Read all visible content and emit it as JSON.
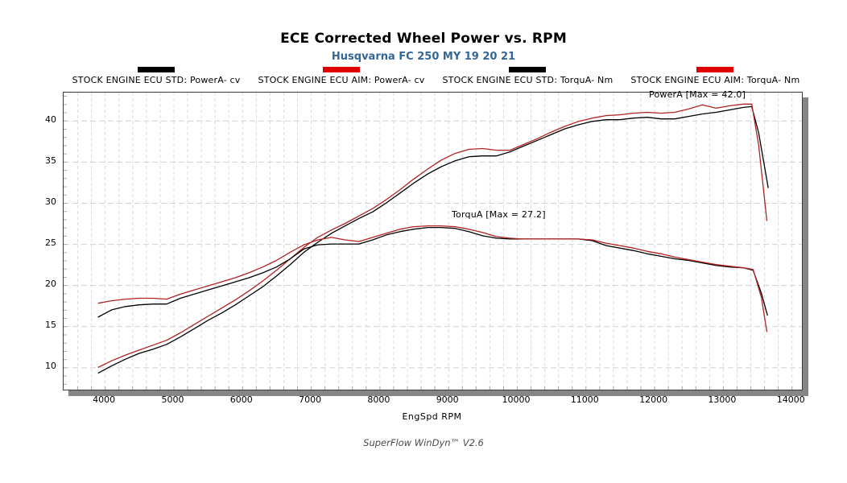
{
  "header": {
    "title": "ECE Corrected Wheel Power vs. RPM",
    "subtitle": "Husqvarna FC 250 MY 19 20 21",
    "subtitle_color": "#336699"
  },
  "legend": {
    "items": [
      {
        "label": "STOCK ENGINE ECU STD: PowerA- cv",
        "color": "#000000"
      },
      {
        "label": "STOCK ENGINE ECU AIM: PowerA- cv",
        "color": "#e10000"
      },
      {
        "label": "STOCK ENGINE ECU STD: TorquA- Nm",
        "color": "#000000"
      },
      {
        "label": "STOCK ENGINE ECU AIM: TorquA- Nm",
        "color": "#e10000"
      }
    ]
  },
  "annotations": {
    "power_max": "PowerA [Max = 42.0]",
    "torque_max": "TorquA [Max = 27.2]"
  },
  "footer": {
    "text": "SuperFlow WinDyn™ V2.6"
  },
  "chart_data": {
    "type": "line",
    "title": "ECE Corrected Wheel Power vs. RPM",
    "subtitle": "Husqvarna FC 250 MY 19 20 21",
    "xlabel": "EngSpd RPM",
    "ylabel": "",
    "x_range": [
      3400,
      14150
    ],
    "y_range": [
      7.3,
      43.4
    ],
    "x_ticks": [
      4000,
      5000,
      6000,
      7000,
      8000,
      9000,
      10000,
      11000,
      12000,
      13000,
      14000
    ],
    "y_ticks": [
      10,
      15,
      20,
      25,
      30,
      35,
      40
    ],
    "grid": {
      "x_start": 3600,
      "x_end": 14000,
      "x_step": 200,
      "y_step": 5,
      "color_v": "#dcdcdc",
      "color_h": "#d0d0d0",
      "minor_tick_color": "#a8a8a8"
    },
    "legend_position": "top",
    "power_max": 42.0,
    "torque_max": 27.2,
    "series": [
      {
        "name": "STOCK ENGINE ECU STD: PowerA- cv",
        "color": "#000000",
        "points": [
          [
            3900,
            9.3
          ],
          [
            4100,
            10.2
          ],
          [
            4300,
            11.0
          ],
          [
            4500,
            11.7
          ],
          [
            4700,
            12.2
          ],
          [
            4900,
            12.8
          ],
          [
            5100,
            13.7
          ],
          [
            5300,
            14.7
          ],
          [
            5500,
            15.7
          ],
          [
            5700,
            16.6
          ],
          [
            5900,
            17.6
          ],
          [
            6100,
            18.7
          ],
          [
            6300,
            19.8
          ],
          [
            6500,
            21.1
          ],
          [
            6700,
            22.5
          ],
          [
            6900,
            24.0
          ],
          [
            7100,
            25.2
          ],
          [
            7300,
            26.3
          ],
          [
            7500,
            27.2
          ],
          [
            7700,
            28.1
          ],
          [
            7900,
            28.9
          ],
          [
            8100,
            30.0
          ],
          [
            8300,
            31.2
          ],
          [
            8500,
            32.4
          ],
          [
            8700,
            33.5
          ],
          [
            8900,
            34.4
          ],
          [
            9100,
            35.1
          ],
          [
            9300,
            35.6
          ],
          [
            9500,
            35.7
          ],
          [
            9700,
            35.7
          ],
          [
            9900,
            36.2
          ],
          [
            10100,
            36.9
          ],
          [
            10300,
            37.6
          ],
          [
            10500,
            38.3
          ],
          [
            10700,
            39.0
          ],
          [
            10900,
            39.5
          ],
          [
            11100,
            39.9
          ],
          [
            11300,
            40.1
          ],
          [
            11500,
            40.1
          ],
          [
            11700,
            40.3
          ],
          [
            11900,
            40.4
          ],
          [
            12100,
            40.2
          ],
          [
            12300,
            40.2
          ],
          [
            12500,
            40.5
          ],
          [
            12700,
            40.8
          ],
          [
            12900,
            41.0
          ],
          [
            13100,
            41.3
          ],
          [
            13300,
            41.6
          ],
          [
            13420,
            41.7
          ],
          [
            13520,
            38.5
          ],
          [
            13660,
            31.8
          ]
        ]
      },
      {
        "name": "STOCK ENGINE ECU AIM: PowerA- cv",
        "color": "#b22222",
        "points": [
          [
            3900,
            10.0
          ],
          [
            4100,
            10.8
          ],
          [
            4300,
            11.5
          ],
          [
            4500,
            12.1
          ],
          [
            4700,
            12.7
          ],
          [
            4900,
            13.3
          ],
          [
            5100,
            14.2
          ],
          [
            5300,
            15.2
          ],
          [
            5500,
            16.2
          ],
          [
            5700,
            17.2
          ],
          [
            5900,
            18.2
          ],
          [
            6100,
            19.3
          ],
          [
            6300,
            20.5
          ],
          [
            6500,
            21.8
          ],
          [
            6700,
            23.2
          ],
          [
            6900,
            24.6
          ],
          [
            7100,
            25.8
          ],
          [
            7300,
            26.7
          ],
          [
            7500,
            27.5
          ],
          [
            7700,
            28.4
          ],
          [
            7900,
            29.3
          ],
          [
            8100,
            30.4
          ],
          [
            8300,
            31.6
          ],
          [
            8500,
            32.9
          ],
          [
            8700,
            34.1
          ],
          [
            8900,
            35.2
          ],
          [
            9100,
            36.0
          ],
          [
            9300,
            36.5
          ],
          [
            9500,
            36.6
          ],
          [
            9700,
            36.4
          ],
          [
            9900,
            36.4
          ],
          [
            10100,
            37.1
          ],
          [
            10300,
            37.8
          ],
          [
            10500,
            38.6
          ],
          [
            10700,
            39.3
          ],
          [
            10900,
            39.9
          ],
          [
            11100,
            40.3
          ],
          [
            11300,
            40.6
          ],
          [
            11500,
            40.7
          ],
          [
            11700,
            40.9
          ],
          [
            11900,
            41.0
          ],
          [
            12100,
            40.9
          ],
          [
            12300,
            41.0
          ],
          [
            12500,
            41.4
          ],
          [
            12700,
            41.9
          ],
          [
            12900,
            41.5
          ],
          [
            13100,
            41.8
          ],
          [
            13300,
            42.0
          ],
          [
            13420,
            42.0
          ],
          [
            13520,
            37.0
          ],
          [
            13640,
            27.8
          ]
        ]
      },
      {
        "name": "STOCK ENGINE ECU STD: TorquA- Nm",
        "color": "#000000",
        "points": [
          [
            3900,
            16.1
          ],
          [
            4100,
            17.0
          ],
          [
            4300,
            17.4
          ],
          [
            4500,
            17.6
          ],
          [
            4700,
            17.7
          ],
          [
            4900,
            17.7
          ],
          [
            5100,
            18.4
          ],
          [
            5300,
            18.9
          ],
          [
            5500,
            19.4
          ],
          [
            5700,
            19.9
          ],
          [
            5900,
            20.4
          ],
          [
            6100,
            20.9
          ],
          [
            6300,
            21.5
          ],
          [
            6500,
            22.2
          ],
          [
            6700,
            23.2
          ],
          [
            6900,
            24.4
          ],
          [
            7100,
            24.9
          ],
          [
            7300,
            25.0
          ],
          [
            7500,
            25.0
          ],
          [
            7700,
            25.0
          ],
          [
            7900,
            25.5
          ],
          [
            8100,
            26.1
          ],
          [
            8300,
            26.5
          ],
          [
            8500,
            26.8
          ],
          [
            8700,
            27.0
          ],
          [
            8900,
            27.0
          ],
          [
            9100,
            26.9
          ],
          [
            9300,
            26.5
          ],
          [
            9500,
            26.0
          ],
          [
            9700,
            25.7
          ],
          [
            9900,
            25.6
          ],
          [
            10100,
            25.6
          ],
          [
            10300,
            25.6
          ],
          [
            10500,
            25.6
          ],
          [
            10700,
            25.6
          ],
          [
            10900,
            25.6
          ],
          [
            11100,
            25.4
          ],
          [
            11300,
            24.8
          ],
          [
            11500,
            24.5
          ],
          [
            11700,
            24.2
          ],
          [
            11900,
            23.8
          ],
          [
            12100,
            23.5
          ],
          [
            12300,
            23.2
          ],
          [
            12500,
            23.0
          ],
          [
            12700,
            22.7
          ],
          [
            12900,
            22.4
          ],
          [
            13100,
            22.2
          ],
          [
            13300,
            22.1
          ],
          [
            13440,
            21.8
          ],
          [
            13560,
            19.0
          ],
          [
            13650,
            16.3
          ]
        ]
      },
      {
        "name": "STOCK ENGINE ECU AIM: TorquA- Nm",
        "color": "#b22222",
        "points": [
          [
            3900,
            17.8
          ],
          [
            4100,
            18.1
          ],
          [
            4300,
            18.3
          ],
          [
            4500,
            18.4
          ],
          [
            4700,
            18.4
          ],
          [
            4900,
            18.3
          ],
          [
            5100,
            18.9
          ],
          [
            5300,
            19.4
          ],
          [
            5500,
            19.9
          ],
          [
            5700,
            20.4
          ],
          [
            5900,
            20.9
          ],
          [
            6100,
            21.5
          ],
          [
            6300,
            22.2
          ],
          [
            6500,
            23.0
          ],
          [
            6700,
            24.0
          ],
          [
            6900,
            24.9
          ],
          [
            7100,
            25.5
          ],
          [
            7300,
            25.8
          ],
          [
            7500,
            25.5
          ],
          [
            7700,
            25.3
          ],
          [
            7900,
            25.8
          ],
          [
            8100,
            26.3
          ],
          [
            8300,
            26.8
          ],
          [
            8500,
            27.1
          ],
          [
            8700,
            27.2
          ],
          [
            8900,
            27.2
          ],
          [
            9100,
            27.1
          ],
          [
            9300,
            26.8
          ],
          [
            9500,
            26.4
          ],
          [
            9700,
            25.9
          ],
          [
            9900,
            25.7
          ],
          [
            10100,
            25.6
          ],
          [
            10300,
            25.6
          ],
          [
            10500,
            25.6
          ],
          [
            10700,
            25.6
          ],
          [
            10900,
            25.6
          ],
          [
            11100,
            25.5
          ],
          [
            11300,
            25.1
          ],
          [
            11500,
            24.8
          ],
          [
            11700,
            24.5
          ],
          [
            11900,
            24.1
          ],
          [
            12100,
            23.8
          ],
          [
            12300,
            23.4
          ],
          [
            12500,
            23.1
          ],
          [
            12700,
            22.8
          ],
          [
            12900,
            22.5
          ],
          [
            13100,
            22.3
          ],
          [
            13300,
            22.1
          ],
          [
            13440,
            21.9
          ],
          [
            13560,
            18.5
          ],
          [
            13640,
            14.3
          ]
        ]
      }
    ]
  }
}
